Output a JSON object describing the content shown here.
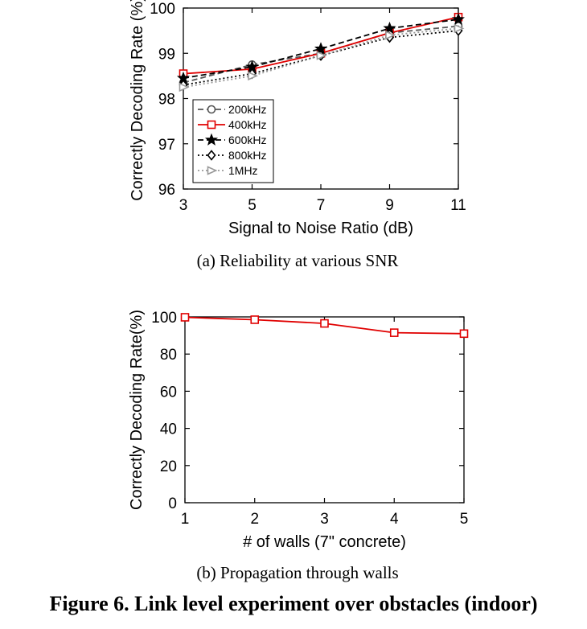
{
  "chart_data": [
    {
      "type": "line",
      "xlabel": "Signal to Noise Ratio (dB)",
      "ylabel": "Correctly Decoding Rate (%)",
      "xlim": [
        3,
        11
      ],
      "ylim": [
        96,
        100
      ],
      "xticks": [
        3,
        5,
        7,
        9,
        11
      ],
      "yticks": [
        96,
        97,
        98,
        99,
        100
      ],
      "x": [
        3,
        5,
        7,
        9,
        11
      ],
      "legend_position": "bottom-left",
      "grid": false,
      "series": [
        {
          "name": "200kHz",
          "values": [
            98.35,
            98.75,
            99.0,
            99.45,
            99.6
          ],
          "color": "#555555",
          "dash": "7,4",
          "marker": "circle"
        },
        {
          "name": "400kHz",
          "values": [
            98.55,
            98.65,
            99.0,
            99.45,
            99.8
          ],
          "color": "#e00000",
          "dash": "",
          "marker": "square"
        },
        {
          "name": "600kHz",
          "values": [
            98.45,
            98.7,
            99.1,
            99.55,
            99.75
          ],
          "color": "#000000",
          "dash": "7,4",
          "marker": "star"
        },
        {
          "name": "800kHz",
          "values": [
            98.3,
            98.55,
            98.95,
            99.35,
            99.5
          ],
          "color": "#000000",
          "dash": "2,3",
          "marker": "diamond"
        },
        {
          "name": "1MHz",
          "values": [
            98.25,
            98.5,
            98.95,
            99.4,
            99.55
          ],
          "color": "#999999",
          "dash": "2,3",
          "marker": "triangle-right"
        }
      ]
    },
    {
      "type": "line",
      "xlabel": "# of walls (7\" concrete)",
      "ylabel": "Correctly Decoding Rate(%)",
      "xlim": [
        1,
        5
      ],
      "ylim": [
        0,
        100
      ],
      "xticks": [
        1,
        2,
        3,
        4,
        5
      ],
      "yticks": [
        0,
        20,
        40,
        60,
        80,
        100
      ],
      "x": [
        1,
        2,
        3,
        4,
        5
      ],
      "grid": false,
      "series": [
        {
          "values": [
            99.8,
            98.5,
            96.5,
            91.5,
            91.0
          ],
          "color": "#e00000",
          "dash": "",
          "marker": "square"
        }
      ]
    }
  ],
  "captions": {
    "a": "(a)  Reliability at various SNR",
    "b": "(b)  Propagation through walls",
    "figure": "Figure 6. Link level experiment over obstacles (indoor)"
  }
}
